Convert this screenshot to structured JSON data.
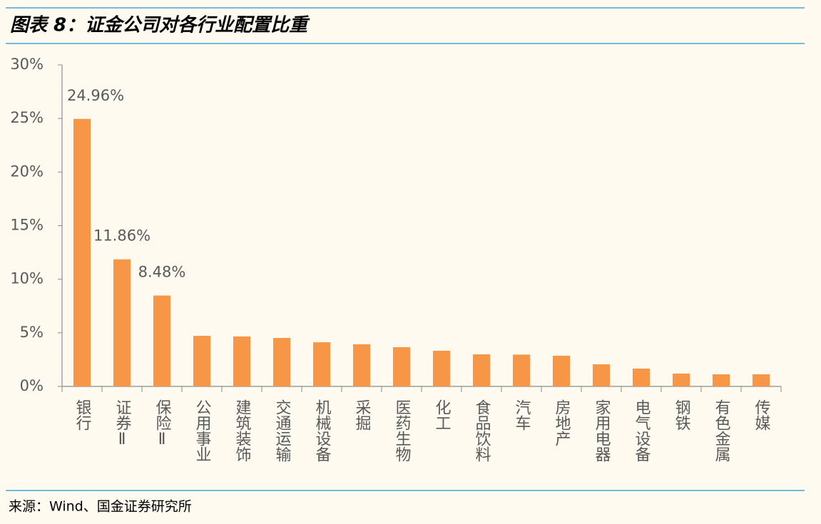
{
  "chart_data": {
    "type": "bar",
    "title": "图表 8：证金公司对各行业配置比重",
    "source": "来源：Wind、国金证券研究所",
    "categories": [
      "银行",
      "证券Ⅱ",
      "保险Ⅱ",
      "公用事业",
      "建筑装饰",
      "交通运输",
      "机械设备",
      "采掘",
      "医药生物",
      "化工",
      "食品饮料",
      "汽车",
      "房地产",
      "家用电器",
      "电气设备",
      "钢铁",
      "有色金属",
      "传媒"
    ],
    "values": [
      24.96,
      11.86,
      8.48,
      4.72,
      4.66,
      4.52,
      4.12,
      3.93,
      3.66,
      3.33,
      2.99,
      2.97,
      2.86,
      2.06,
      1.66,
      1.2,
      1.13,
      1.13
    ],
    "value_labels": [
      "24.96%",
      "11.86%",
      "8.48%",
      null,
      null,
      null,
      null,
      null,
      null,
      null,
      null,
      null,
      null,
      null,
      null,
      null,
      null,
      null
    ],
    "color": "#f79646",
    "ylim": [
      0,
      30
    ],
    "yticks": [
      {
        "value": 0,
        "label": "0%"
      },
      {
        "value": 5,
        "label": "5%"
      },
      {
        "value": 10,
        "label": "10%"
      },
      {
        "value": 15,
        "label": "15%"
      },
      {
        "value": 20,
        "label": "20%"
      },
      {
        "value": 25,
        "label": "25%"
      },
      {
        "value": 30,
        "label": "30%"
      }
    ],
    "grid": false
  }
}
